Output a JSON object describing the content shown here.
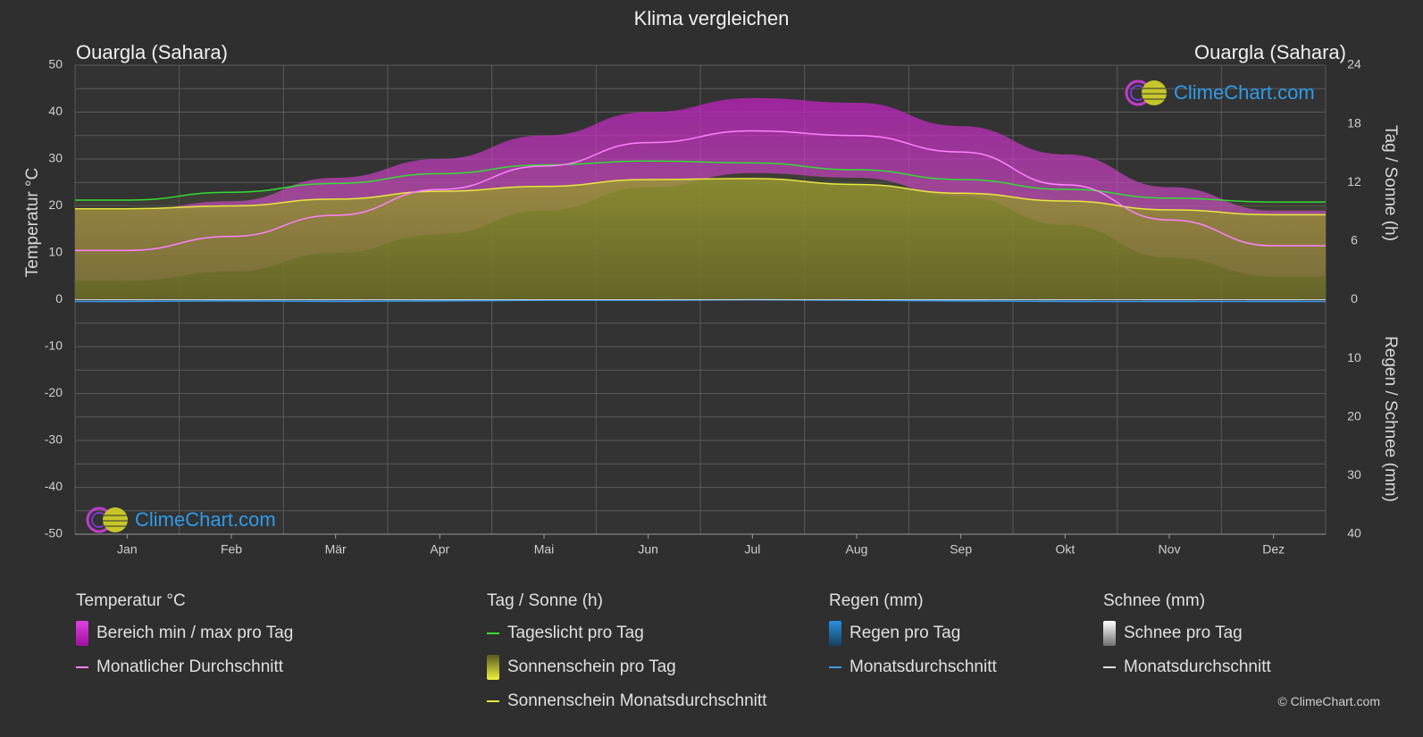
{
  "page": {
    "title": "Klima vergleichen",
    "location_left": "Ouargla (Sahara)",
    "location_right": "Ouargla (Sahara)",
    "brand": "ClimeChart.com",
    "copyright": "© ClimeChart.com"
  },
  "axes": {
    "left_label": "Temperatur °C",
    "right_top_label": "Tag / Sonne (h)",
    "right_bottom_label": "Regen / Schnee (mm)"
  },
  "legend": {
    "temperature": {
      "title": "Temperatur °C",
      "range_label": "Bereich min / max pro Tag",
      "avg_label": "Monatlicher Durchschnitt"
    },
    "sun": {
      "title": "Tag / Sonne (h)",
      "daylight_label": "Tageslicht pro Tag",
      "sunshine_label": "Sonnenschein pro Tag",
      "sunshine_avg_label": "Sonnenschein Monatsdurchschnitt"
    },
    "rain": {
      "title": "Regen (mm)",
      "rain_label": "Regen pro Tag",
      "avg_label": "Monatsdurchschnitt"
    },
    "snow": {
      "title": "Schnee (mm)",
      "snow_label": "Schnee pro Tag",
      "avg_label": "Monatsdurchschnitt"
    }
  },
  "colors": {
    "background": "#2f2f2f",
    "grid": "#5a5a5a",
    "temp_range": "#d020d0",
    "temp_avg": "#ff80ff",
    "daylight": "#33dd33",
    "sunshine_fill": "#8c8c2c",
    "sunshine_avg": "#e8e840",
    "rain": "#2a8ad8",
    "rain_avg": "#3a9ae8",
    "snow": "#d0d0d0",
    "brand": "#2f9be8"
  },
  "chart_data": {
    "type": "area",
    "months": [
      "Jan",
      "Feb",
      "Mär",
      "Apr",
      "Mai",
      "Jun",
      "Jul",
      "Aug",
      "Sep",
      "Okt",
      "Nov",
      "Dez"
    ],
    "temp_axis": {
      "min": -50,
      "max": 50,
      "ticks": [
        50,
        40,
        30,
        20,
        10,
        0,
        -10,
        -20,
        -30,
        -40,
        -50
      ]
    },
    "sun_axis": {
      "min": 0,
      "max": 24,
      "ticks": [
        24,
        18,
        12,
        6,
        0
      ]
    },
    "rain_axis": {
      "min": 0,
      "max": 40,
      "ticks": [
        0,
        10,
        20,
        30,
        40
      ]
    },
    "series": [
      {
        "name": "Bereich min / max pro Tag",
        "kind": "range",
        "min": [
          4,
          6,
          10,
          14,
          19,
          24,
          27,
          26,
          22,
          16,
          9,
          5
        ],
        "max": [
          19,
          21,
          26,
          30,
          35,
          40,
          43,
          42,
          37,
          31,
          24,
          19
        ]
      },
      {
        "name": "Monatlicher Durchschnitt",
        "kind": "line",
        "values": [
          10.5,
          13.5,
          18,
          23.5,
          28.5,
          33.5,
          36,
          35,
          31.5,
          24.5,
          17,
          11.5
        ]
      },
      {
        "name": "Tageslicht pro Tag",
        "kind": "line",
        "unit": "h",
        "values": [
          10.2,
          11.0,
          11.9,
          12.9,
          13.8,
          14.2,
          14.0,
          13.3,
          12.3,
          11.3,
          10.4,
          10.0
        ]
      },
      {
        "name": "Sonnenschein Monatsdurchschnitt",
        "kind": "line",
        "unit": "h",
        "values": [
          9.3,
          9.6,
          10.3,
          11.1,
          11.6,
          12.3,
          12.4,
          11.8,
          10.9,
          10.1,
          9.2,
          8.7
        ]
      },
      {
        "name": "Regen Monatsdurchschnitt",
        "kind": "line",
        "unit": "mm",
        "values": [
          0.3,
          0.2,
          0.3,
          0.2,
          0.1,
          0.1,
          0.0,
          0.1,
          0.2,
          0.3,
          0.3,
          0.3
        ]
      }
    ]
  }
}
